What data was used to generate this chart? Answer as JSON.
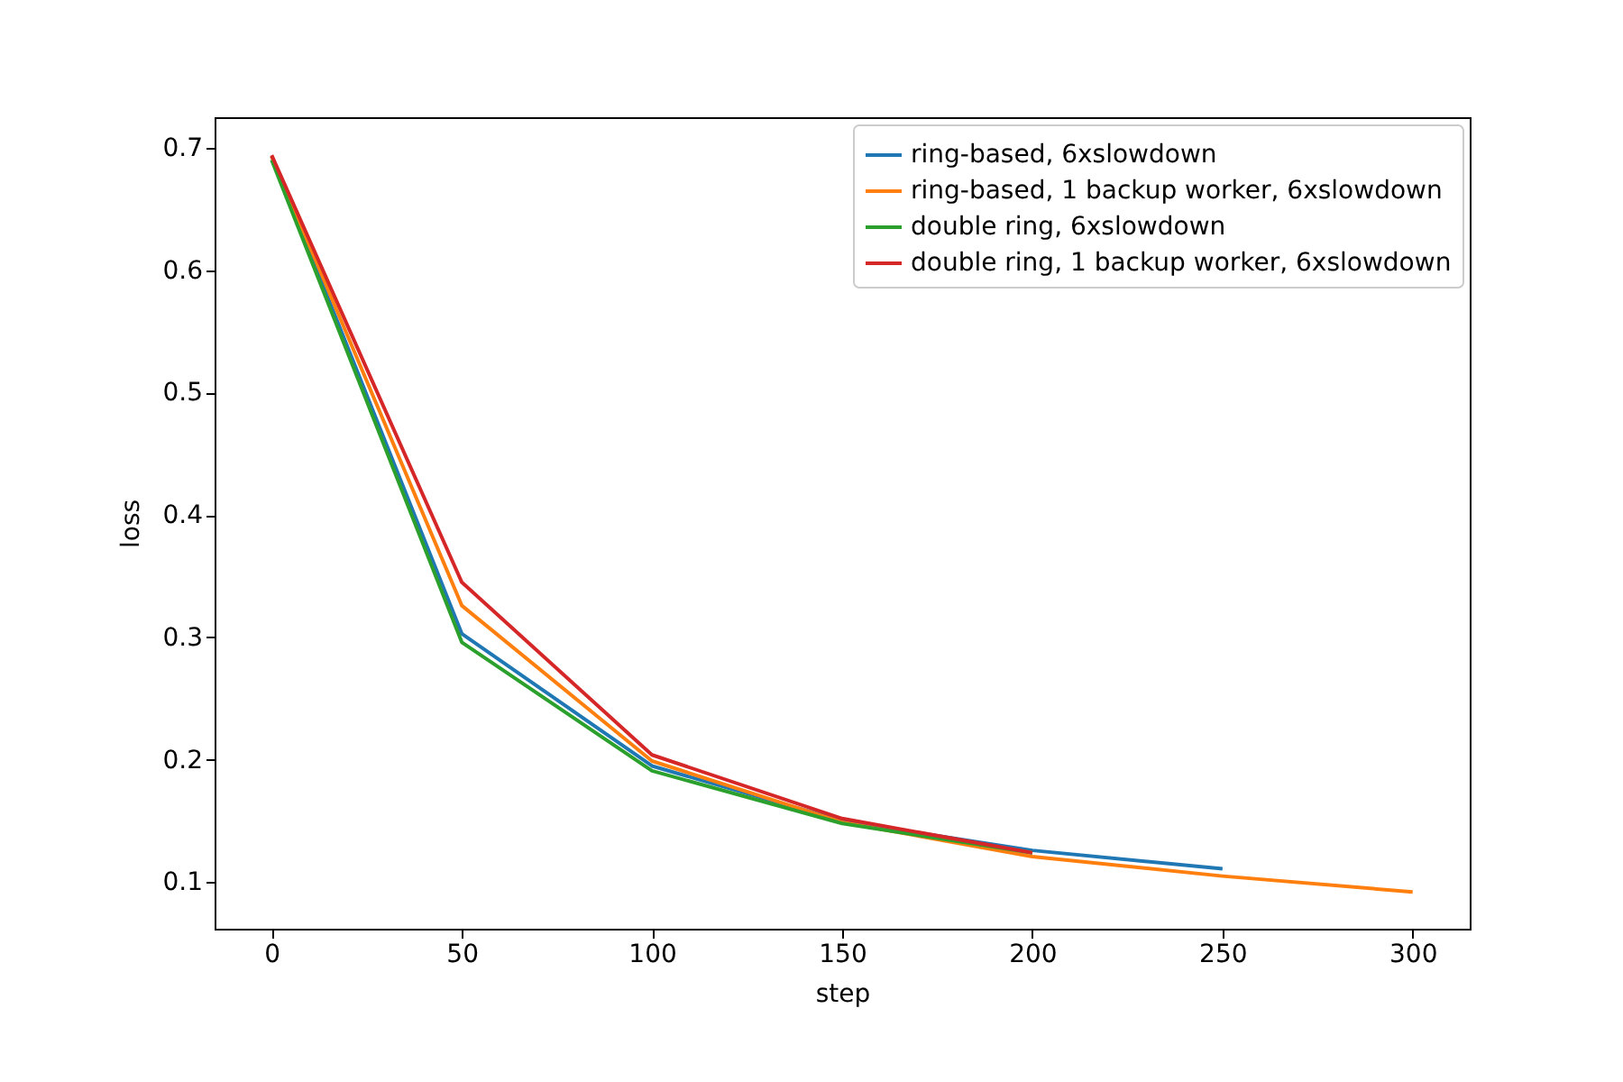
{
  "chart_data": {
    "type": "line",
    "xlabel": "step",
    "ylabel": "loss",
    "x": [
      0,
      50,
      100,
      150,
      200,
      250,
      300
    ],
    "series": [
      {
        "name": "ring-based, 6xslowdown",
        "color": "#1f77b4",
        "values": [
          0.693,
          0.303,
          0.195,
          0.15,
          0.126,
          0.111,
          null
        ]
      },
      {
        "name": "ring-based, 1 backup worker, 6xslowdown",
        "color": "#ff7f0e",
        "values": [
          0.693,
          0.326,
          0.199,
          0.149,
          0.121,
          0.105,
          0.092
        ]
      },
      {
        "name": "double ring, 6xslowdown",
        "color": "#2ca02c",
        "values": [
          0.69,
          0.296,
          0.191,
          0.148,
          0.124,
          null,
          null
        ]
      },
      {
        "name": "double ring, 1 backup worker, 6xslowdown",
        "color": "#d62728",
        "values": [
          0.694,
          0.345,
          0.204,
          0.152,
          0.124,
          null,
          null
        ]
      }
    ],
    "xlim": [
      -15,
      315
    ],
    "xticks": [
      0,
      50,
      100,
      150,
      200,
      250,
      300
    ],
    "ylim": [
      0.062,
      0.725
    ],
    "yticks": [
      0.1,
      0.2,
      0.3,
      0.4,
      0.5,
      0.6,
      0.7
    ],
    "grid": false,
    "legend": "top right"
  }
}
